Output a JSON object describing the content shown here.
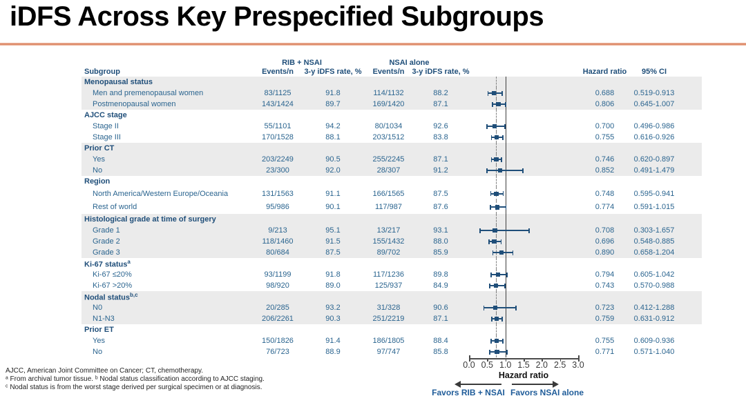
{
  "table_headers": {
    "arm1": "RIB + NSAI",
    "arm2": "NSAI alone",
    "subgroup": "Subgroup",
    "events": "Events/n",
    "rate": "3-y iDFS rate, %",
    "hazard_ratio": "Hazard ratio",
    "ci": "95% CI"
  },
  "chart_data": {
    "type": "scatter",
    "subtype": "forest-plot",
    "title": "iDFS Across Key Prespecified Subgroups",
    "xlabel": "Hazard ratio",
    "xlim": [
      0,
      3
    ],
    "xticks": [
      "0.0",
      "0.5",
      "1.0",
      "1.5",
      "2.0",
      "2.5",
      "3.0"
    ],
    "ref_line_solid": 1.0,
    "ref_line_dashed": 0.749,
    "favors_left": "Favors RIB + NSAI",
    "favors_right": "Favors NSAI alone",
    "groups": [
      {
        "label": "Menopausal status",
        "sup": "",
        "shaded": true,
        "tall": false,
        "rows": [
          {
            "label": "Men and premenopausal women",
            "arm1_events": "83/1125",
            "arm1_rate": "91.8",
            "arm2_events": "114/1132",
            "arm2_rate": "88.2",
            "hr": 0.688,
            "ci_low": 0.519,
            "ci_high": 0.913,
            "hr_text": "0.688",
            "ci_text": "0.519-0.913"
          },
          {
            "label": "Postmenopausal women",
            "arm1_events": "143/1424",
            "arm1_rate": "89.7",
            "arm2_events": "169/1420",
            "arm2_rate": "87.1",
            "hr": 0.806,
            "ci_low": 0.645,
            "ci_high": 1.007,
            "hr_text": "0.806",
            "ci_text": "0.645-1.007"
          }
        ]
      },
      {
        "label": "AJCC stage",
        "sup": "",
        "shaded": false,
        "tall": false,
        "rows": [
          {
            "label": "Stage II",
            "arm1_events": "55/1101",
            "arm1_rate": "94.2",
            "arm2_events": "80/1034",
            "arm2_rate": "92.6",
            "hr": 0.7,
            "ci_low": 0.496,
            "ci_high": 0.986,
            "hr_text": "0.700",
            "ci_text": "0.496-0.986"
          },
          {
            "label": "Stage III",
            "arm1_events": "170/1528",
            "arm1_rate": "88.1",
            "arm2_events": "203/1512",
            "arm2_rate": "83.8",
            "hr": 0.755,
            "ci_low": 0.616,
            "ci_high": 0.926,
            "hr_text": "0.755",
            "ci_text": "0.616-0.926"
          }
        ]
      },
      {
        "label": "Prior CT",
        "sup": "",
        "shaded": true,
        "tall": false,
        "rows": [
          {
            "label": "Yes",
            "arm1_events": "203/2249",
            "arm1_rate": "90.5",
            "arm2_events": "255/2245",
            "arm2_rate": "87.1",
            "hr": 0.746,
            "ci_low": 0.62,
            "ci_high": 0.897,
            "hr_text": "0.746",
            "ci_text": "0.620-0.897"
          },
          {
            "label": "No",
            "arm1_events": "23/300",
            "arm1_rate": "92.0",
            "arm2_events": "28/307",
            "arm2_rate": "91.2",
            "hr": 0.852,
            "ci_low": 0.491,
            "ci_high": 1.479,
            "hr_text": "0.852",
            "ci_text": "0.491-1.479"
          }
        ]
      },
      {
        "label": "Region",
        "sup": "",
        "shaded": false,
        "tall": true,
        "rows": [
          {
            "label": "North America/Western Europe/Oceania",
            "arm1_events": "131/1563",
            "arm1_rate": "91.1",
            "arm2_events": "166/1565",
            "arm2_rate": "87.5",
            "hr": 0.748,
            "ci_low": 0.595,
            "ci_high": 0.941,
            "hr_text": "0.748",
            "ci_text": "0.595-0.941"
          },
          {
            "label": "Rest of world",
            "arm1_events": "95/986",
            "arm1_rate": "90.1",
            "arm2_events": "117/987",
            "arm2_rate": "87.6",
            "hr": 0.774,
            "ci_low": 0.591,
            "ci_high": 1.015,
            "hr_text": "0.774",
            "ci_text": "0.591-1.015"
          }
        ]
      },
      {
        "label": "Histological grade at time of surgery",
        "sup": "",
        "shaded": true,
        "tall": false,
        "rows": [
          {
            "label": "Grade 1",
            "arm1_events": "9/213",
            "arm1_rate": "95.1",
            "arm2_events": "13/217",
            "arm2_rate": "93.1",
            "hr": 0.708,
            "ci_low": 0.303,
            "ci_high": 1.657,
            "hr_text": "0.708",
            "ci_text": "0.303-1.657"
          },
          {
            "label": "Grade 2",
            "arm1_events": "118/1460",
            "arm1_rate": "91.5",
            "arm2_events": "155/1432",
            "arm2_rate": "88.0",
            "hr": 0.696,
            "ci_low": 0.548,
            "ci_high": 0.885,
            "hr_text": "0.696",
            "ci_text": "0.548-0.885"
          },
          {
            "label": "Grade 3",
            "arm1_events": "80/684",
            "arm1_rate": "87.5",
            "arm2_events": "89/702",
            "arm2_rate": "85.9",
            "hr": 0.89,
            "ci_low": 0.658,
            "ci_high": 1.204,
            "hr_text": "0.890",
            "ci_text": "0.658-1.204"
          }
        ]
      },
      {
        "label": "Ki-67 status",
        "sup": "a",
        "shaded": false,
        "tall": false,
        "rows": [
          {
            "label": "Ki-67 ≤20%",
            "arm1_events": "93/1199",
            "arm1_rate": "91.8",
            "arm2_events": "117/1236",
            "arm2_rate": "89.8",
            "hr": 0.794,
            "ci_low": 0.605,
            "ci_high": 1.042,
            "hr_text": "0.794",
            "ci_text": "0.605-1.042"
          },
          {
            "label": "Ki-67 >20%",
            "arm1_events": "98/920",
            "arm1_rate": "89.0",
            "arm2_events": "125/937",
            "arm2_rate": "84.9",
            "hr": 0.743,
            "ci_low": 0.57,
            "ci_high": 0.988,
            "hr_text": "0.743",
            "ci_text": "0.570-0.988"
          }
        ]
      },
      {
        "label": "Nodal status",
        "sup": "b,c",
        "shaded": true,
        "tall": false,
        "rows": [
          {
            "label": "N0",
            "arm1_events": "20/285",
            "arm1_rate": "93.2",
            "arm2_events": "31/328",
            "arm2_rate": "90.6",
            "hr": 0.723,
            "ci_low": 0.412,
            "ci_high": 1.288,
            "hr_text": "0.723",
            "ci_text": "0.412-1.288"
          },
          {
            "label": "N1-N3",
            "arm1_events": "206/2261",
            "arm1_rate": "90.3",
            "arm2_events": "251/2219",
            "arm2_rate": "87.1",
            "hr": 0.759,
            "ci_low": 0.631,
            "ci_high": 0.912,
            "hr_text": "0.759",
            "ci_text": "0.631-0.912"
          }
        ]
      },
      {
        "label": "Prior ET",
        "sup": "",
        "shaded": false,
        "tall": false,
        "rows": [
          {
            "label": "Yes",
            "arm1_events": "150/1826",
            "arm1_rate": "91.4",
            "arm2_events": "186/1805",
            "arm2_rate": "88.4",
            "hr": 0.755,
            "ci_low": 0.609,
            "ci_high": 0.936,
            "hr_text": "0.755",
            "ci_text": "0.609-0.936"
          },
          {
            "label": "No",
            "arm1_events": "76/723",
            "arm1_rate": "88.9",
            "arm2_events": "97/747",
            "arm2_rate": "85.8",
            "hr": 0.771,
            "ci_low": 0.571,
            "ci_high": 1.04,
            "hr_text": "0.771",
            "ci_text": "0.571-1.040"
          }
        ]
      }
    ]
  },
  "footnotes": [
    "AJCC, American Joint Committee on Cancer; CT, chemotherapy.",
    "ᵃ From archival tumor tissue. ᵇ Nodal status classification according to AJCC staging.",
    "ᶜ Nodal status is from the worst stage derived per surgical specimen or at diagnosis."
  ],
  "colors": {
    "accent_rule": "#d87f5c",
    "text_blue": "#2a648f",
    "dark_blue": "#1f4e79",
    "stripe": "#ebebeb",
    "marker": "#1f4e79"
  }
}
